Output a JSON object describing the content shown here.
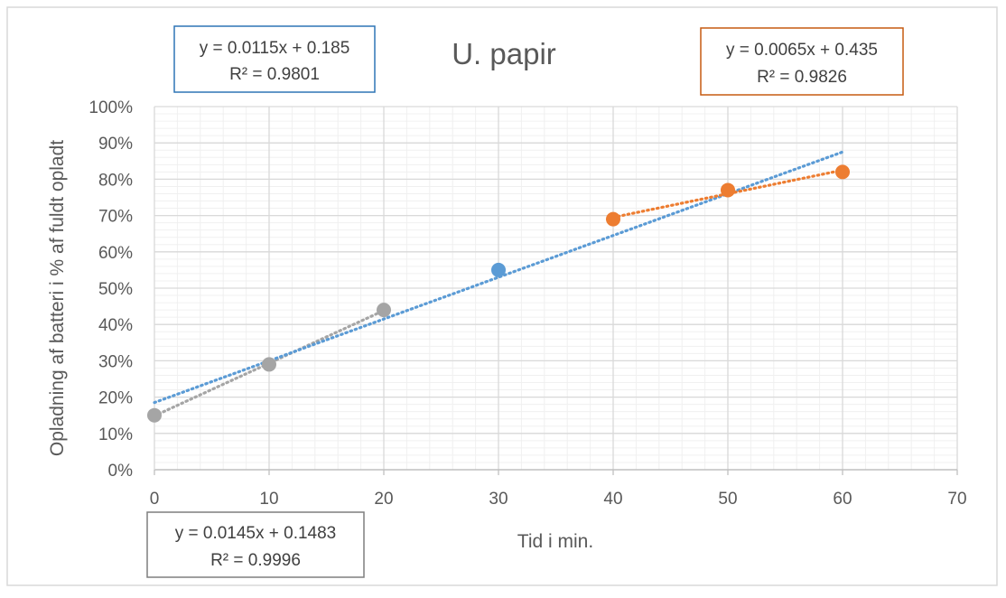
{
  "chart_data": {
    "type": "scatter",
    "title": "U. papir",
    "xlabel": "Tid i min.",
    "ylabel": "Opladning af batteri i % af fuldt opladt",
    "xlim": [
      0,
      70
    ],
    "ylim": [
      0,
      1
    ],
    "x_ticks": [
      0,
      10,
      20,
      30,
      40,
      50,
      60,
      70
    ],
    "x_tick_labels": [
      "0",
      "10",
      "20",
      "30",
      "40",
      "50",
      "60",
      "70"
    ],
    "y_ticks": [
      0,
      0.1,
      0.2,
      0.3,
      0.4,
      0.5,
      0.6,
      0.7,
      0.8,
      0.9,
      1.0
    ],
    "y_tick_labels": [
      "0%",
      "10%",
      "20%",
      "30%",
      "40%",
      "50%",
      "60%",
      "70%",
      "80%",
      "90%",
      "100%"
    ],
    "grid": true,
    "minor_grid": true,
    "legend": "none",
    "series": [
      {
        "color": "#a5a5a5",
        "points": [
          {
            "x": 0,
            "y": 0.15
          },
          {
            "x": 10,
            "y": 0.29
          },
          {
            "x": 20,
            "y": 0.44
          }
        ],
        "trendline": {
          "type": "linear",
          "slope": 0.0145,
          "intercept": 0.1483,
          "x_range": [
            0,
            20
          ],
          "color": "#a5a5a5"
        }
      },
      {
        "color": "#5b9bd5",
        "points": [
          {
            "x": 30,
            "y": 0.55
          }
        ],
        "trendline": {
          "type": "linear",
          "slope": 0.0115,
          "intercept": 0.185,
          "x_range": [
            0,
            60
          ],
          "color": "#5b9bd5"
        }
      },
      {
        "color": "#ed7d31",
        "points": [
          {
            "x": 40,
            "y": 0.69
          },
          {
            "x": 50,
            "y": 0.77
          },
          {
            "x": 60,
            "y": 0.82
          }
        ],
        "trendline": {
          "type": "linear",
          "slope": 0.0065,
          "intercept": 0.435,
          "x_range": [
            40,
            60
          ],
          "color": "#ed7d31"
        }
      }
    ],
    "annotations": [
      {
        "line1": "y = 0.0115x + 0.185",
        "line2": "R² = 0.9801",
        "border_color": "#2e75b6"
      },
      {
        "line1": "y = 0.0065x + 0.435",
        "line2": "R² = 0.9826",
        "border_color": "#c55a11"
      },
      {
        "line1": "y = 0.0145x + 0.1483",
        "line2": "R² = 0.9996",
        "border_color": "#7f7f7f"
      }
    ]
  }
}
